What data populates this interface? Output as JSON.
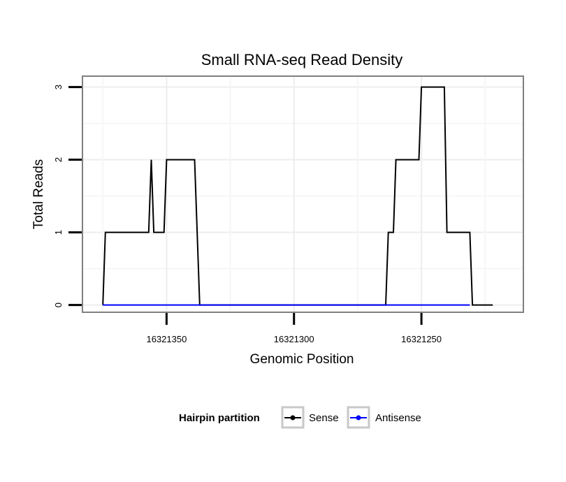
{
  "chart_data": {
    "type": "line",
    "title": "Small RNA-seq Read Density",
    "xlabel": "Genomic Position",
    "ylabel": "Total Reads",
    "x_reversed": true,
    "xlim": [
      16321383,
      16321210
    ],
    "ylim": [
      -0.1,
      3.15
    ],
    "xticks": [
      16321350,
      16321300,
      16321250
    ],
    "xtick_labels": [
      "16321350",
      "16321300",
      "16321250"
    ],
    "yticks": [
      0,
      1,
      2,
      3
    ],
    "ytick_labels": [
      "0",
      "1",
      "2",
      "3"
    ],
    "grid": true,
    "legend": {
      "title": "Hairpin partition",
      "position": "bottom",
      "entries": [
        "Sense",
        "Antisense"
      ]
    },
    "series": [
      {
        "name": "Sense",
        "color": "#000000",
        "x": [
          16321375,
          16321374,
          16321357,
          16321356,
          16321355,
          16321351,
          16321350,
          16321339,
          16321337,
          16321264,
          16321263,
          16321261,
          16321260,
          16321251,
          16321250,
          16321241,
          16321240,
          16321231,
          16321230,
          16321222
        ],
        "y": [
          0,
          1,
          1,
          2,
          1,
          1,
          2,
          2,
          0,
          0,
          1,
          1,
          2,
          2,
          3,
          3,
          1,
          1,
          0,
          0
        ]
      },
      {
        "name": "Antisense",
        "color": "#0000ff",
        "x": [
          16321375,
          16321231
        ],
        "y": [
          0,
          0
        ]
      }
    ]
  }
}
